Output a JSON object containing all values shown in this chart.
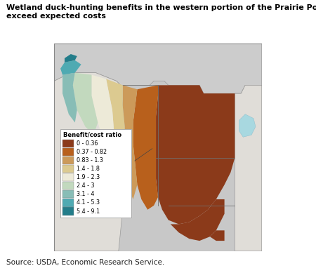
{
  "title_line1": "Wetland duck-hunting benefits in the western portion of the Prairie Pothole Region",
  "title_line2": "exceed expected costs",
  "source": "Source: USDA, Economic Research Service.",
  "title_fontsize": 8,
  "source_fontsize": 7.5,
  "legend_title": "Benefit/cost ratio",
  "legend_labels": [
    "0 - 0.36",
    "0.37 - 0.82",
    "0.83 - 1.3",
    "1.4 - 1.8",
    "1.9 - 2.3",
    "2.4 - 3",
    "3.1 - 4",
    "4.1 - 5.3",
    "5.4 - 9.1"
  ],
  "legend_colors": [
    "#8B3A1A",
    "#B8601C",
    "#CC9A5A",
    "#DCCA90",
    "#EDEAD8",
    "#C2D9BE",
    "#88BDB6",
    "#4FAAB2",
    "#237D8A"
  ],
  "map_bg": "#C8C8C8",
  "canada_color": "#CCCCCC",
  "state_bg": "#E0DDD8",
  "water_color": "#A8D8E0",
  "border_color": "#707070",
  "figure_bg": "#ffffff"
}
